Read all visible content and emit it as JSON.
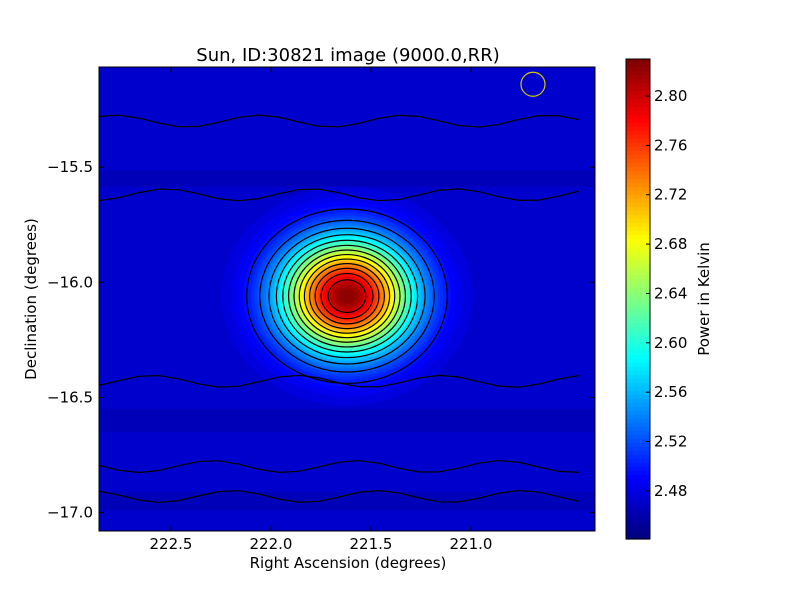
{
  "chart_data": {
    "type": "heatmap",
    "title": "Sun, ID:30821 image (9000.0,RR)",
    "xlabel": "Right Ascension (degrees)",
    "ylabel": "Declination (degrees)",
    "xlim": [
      222.86,
      220.38
    ],
    "ylim": [
      -17.08,
      -15.065
    ],
    "xticks": [
      222.5,
      222.0,
      221.5,
      221.0
    ],
    "xtick_labels": [
      "222.5",
      "222.0",
      "221.5",
      "221.0"
    ],
    "yticks": [
      -15.5,
      -16.0,
      -16.5,
      -17.0
    ],
    "ytick_labels": [
      "−15.5",
      "−16.0",
      "−16.5",
      "−17.0"
    ],
    "colorbar": {
      "label": "Power in Kelvin",
      "range": [
        2.441,
        2.83
      ],
      "ticks": [
        2.48,
        2.52,
        2.56,
        2.6,
        2.64,
        2.68,
        2.72,
        2.76,
        2.8
      ],
      "tick_labels": [
        "2.48",
        "2.52",
        "2.56",
        "2.60",
        "2.64",
        "2.68",
        "2.72",
        "2.76",
        "2.80"
      ],
      "colormap": "jet"
    },
    "source": {
      "ra": 221.62,
      "dec": -16.06,
      "peak": 2.83,
      "background": 2.47,
      "sigma_ra": 0.225,
      "sigma_dec": 0.17
    },
    "contour_levels": [
      2.5,
      2.525,
      2.55,
      2.575,
      2.6,
      2.625,
      2.65,
      2.675,
      2.7,
      2.725,
      2.75,
      2.775,
      2.8
    ],
    "beam": {
      "ra": 220.69,
      "dec": -15.14,
      "color": "#d4c800"
    },
    "grid": false
  }
}
